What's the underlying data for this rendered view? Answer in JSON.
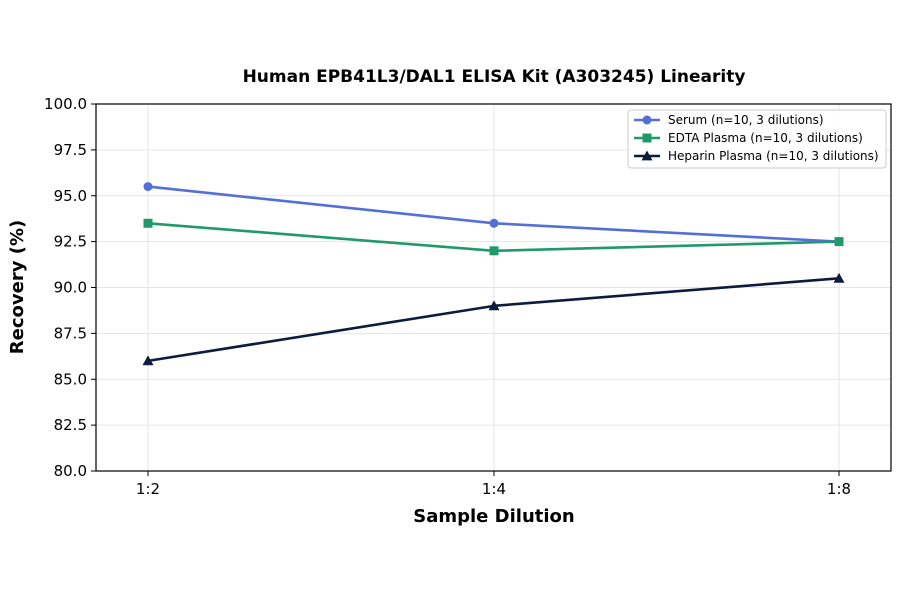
{
  "chart_data": {
    "type": "line",
    "title": "Human EPB41L3/DAL1 ELISA Kit (A303245) Linearity",
    "xlabel": "Sample Dilution",
    "ylabel": "Recovery (%)",
    "categories": [
      "1:2",
      "1:4",
      "1:8"
    ],
    "ylim": [
      80.0,
      100.0
    ],
    "yticks": [
      "80.0",
      "82.5",
      "85.0",
      "87.5",
      "90.0",
      "92.5",
      "95.0",
      "97.5",
      "100.0"
    ],
    "grid": true,
    "legend_position": "top-right",
    "series": [
      {
        "name": "Serum (n=10, 3 dilutions)",
        "values": [
          95.5,
          93.5,
          92.5
        ],
        "color": "#5470d6",
        "marker": "circle"
      },
      {
        "name": "EDTA Plasma (n=10, 3 dilutions)",
        "values": [
          93.5,
          92.0,
          92.5
        ],
        "color": "#21996b",
        "marker": "square"
      },
      {
        "name": "Heparin Plasma (n=10, 3 dilutions)",
        "values": [
          86.0,
          89.0,
          90.5
        ],
        "color": "#0d1b3d",
        "marker": "triangle"
      }
    ]
  }
}
